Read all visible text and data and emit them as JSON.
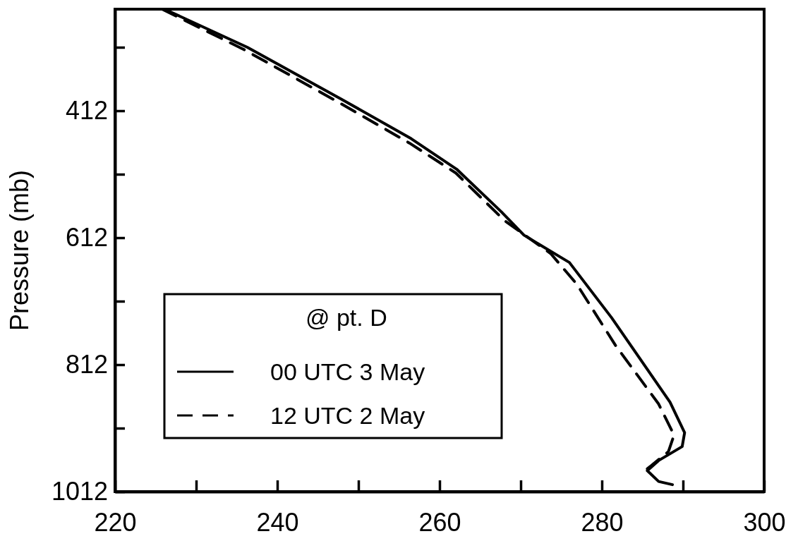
{
  "chart_data": {
    "type": "line",
    "ylabel": "Pressure (mb)",
    "legend_title": "@ pt. D",
    "legend": "bottom left",
    "grid": false,
    "marker": "none",
    "xlim": [
      220,
      300
    ],
    "xticks": [
      220,
      {
        "value": 230,
        "label": null
      },
      240,
      {
        "value": 250,
        "label": null
      },
      260,
      {
        "value": 270,
        "label": null
      },
      280,
      {
        "value": 290,
        "label": null
      },
      300
    ],
    "ylim": [
      1012,
      252
    ],
    "yticks": [
      {
        "value": 312,
        "label": null
      },
      412,
      {
        "value": 512,
        "label": null
      },
      612,
      {
        "value": 712,
        "label": null
      },
      812,
      {
        "value": 912,
        "label": null
      },
      1012
    ],
    "series": [
      {
        "name": "00 UTC 3 May",
        "color": "#000000",
        "line_style": "solid",
        "x": [
          226.1,
          236.3,
          247.8,
          256.5,
          262.1,
          267.6,
          270.4,
          276.0,
          281.2,
          288.4,
          290.2,
          289.9,
          287.0,
          285.6,
          287.0,
          288.7
        ],
        "values": [
          252,
          312,
          393,
          456,
          504,
          571,
          608,
          651,
          738,
          871,
          919,
          941,
          963,
          979,
          996,
          1001
        ]
      },
      {
        "name": "12 UTC 2 May",
        "color": "#000000",
        "line_style": "dashed",
        "x": [
          225.8,
          235.8,
          247.6,
          256.3,
          262.0,
          268.0,
          273.7,
          276.9,
          281.7,
          287.0,
          288.9,
          288.2,
          286.1,
          285.6
        ],
        "values": [
          252,
          315,
          399,
          463,
          510,
          585,
          637,
          685,
          782,
          874,
          923,
          949,
          971,
          976
        ]
      }
    ]
  }
}
